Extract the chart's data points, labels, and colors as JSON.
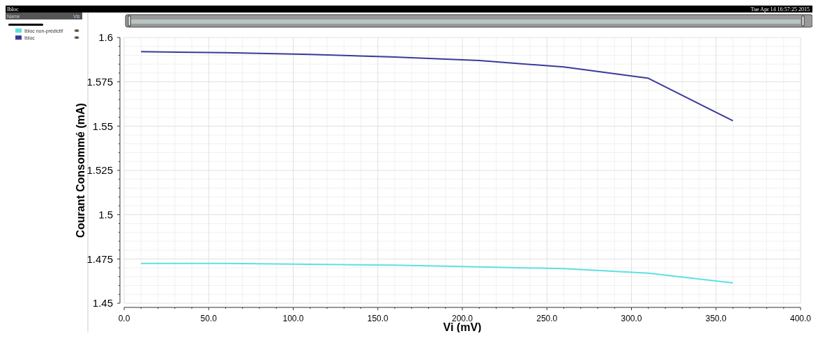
{
  "chart_data": {
    "type": "line",
    "title": "Ibloc",
    "xlabel": "Vi (mV)",
    "ylabel": "Courant Consommé (mA)",
    "annotations": [
      "Tue Apr 14 16:57:25 2015",
      "Name",
      "Vis"
    ],
    "x": [
      10,
      60,
      110,
      160,
      210,
      260,
      310,
      360
    ],
    "series": [
      {
        "name": "Ibloc non-prédictif",
        "color": "#5ee0e0",
        "values": [
          1.4725,
          1.4725,
          1.472,
          1.4715,
          1.4705,
          1.4695,
          1.467,
          1.4615
        ]
      },
      {
        "name": "Ibloc",
        "color": "#3a3a9a",
        "values": [
          1.592,
          1.5915,
          1.5905,
          1.589,
          1.587,
          1.5834,
          1.577,
          1.553
        ]
      }
    ],
    "xlim": [
      0,
      400
    ],
    "ylim": [
      1.45,
      1.6
    ],
    "xticks": [
      {
        "value": 0,
        "label": "0.0"
      },
      {
        "value": 50,
        "label": "50.0"
      },
      {
        "value": 100,
        "label": "100.0"
      },
      {
        "value": 150,
        "label": "150.0"
      },
      {
        "value": 200,
        "label": "200.0"
      },
      {
        "value": 250,
        "label": "250.0"
      },
      {
        "value": 300,
        "label": "300.0"
      },
      {
        "value": 350,
        "label": "350.0"
      },
      {
        "value": 400,
        "label": "400.0"
      }
    ],
    "yticks": [
      1.45,
      1.475,
      1.5,
      1.525,
      1.55,
      1.575,
      1.6
    ],
    "grid": true,
    "legend": "left",
    "marker": "none",
    "line_style": "solid"
  }
}
